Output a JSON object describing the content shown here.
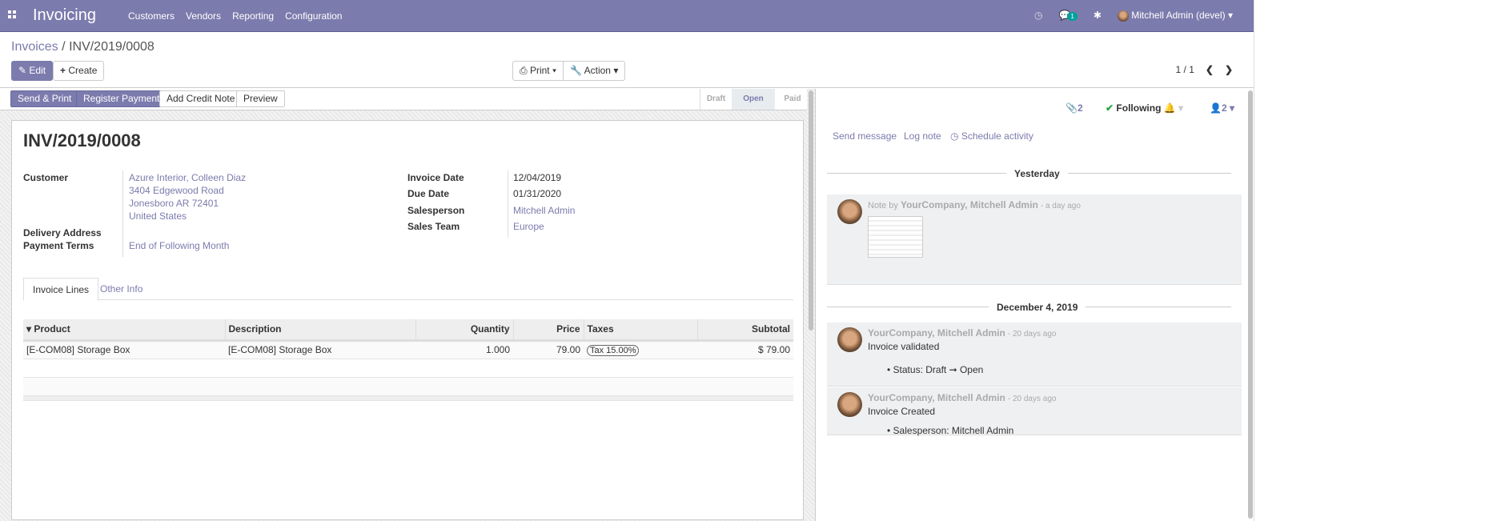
{
  "navbar": {
    "app": "Invoicing",
    "menu": [
      "Customers",
      "Vendors",
      "Reporting",
      "Configuration"
    ],
    "chat_badge": "1",
    "user": "Mitchell Admin (devel)",
    "color": "#7c7bad"
  },
  "control": {
    "breadcrumb_parent": "Invoices",
    "breadcrumb_sep": "/",
    "breadcrumb_current": "INV/2019/0008",
    "edit": "Edit",
    "create": "Create",
    "print": "Print",
    "action": "Action",
    "pager": "1 / 1"
  },
  "statusbar": {
    "buttons": [
      "Send & Print",
      "Register Payment",
      "Add Credit Note",
      "Preview"
    ],
    "stages": [
      "Draft",
      "Open",
      "Paid"
    ],
    "active_stage": "Open"
  },
  "form": {
    "title": "INV/2019/0008",
    "customer_label": "Customer",
    "customer": [
      "Azure Interior, Colleen Diaz",
      "3404 Edgewood Road",
      "Jonesboro AR 72401",
      "United States"
    ],
    "delivery_label": "Delivery Address",
    "terms_label": "Payment Terms",
    "terms": "End of Following Month",
    "invoice_date_label": "Invoice Date",
    "invoice_date": "12/04/2019",
    "due_date_label": "Due Date",
    "due_date": "01/31/2020",
    "salesperson_label": "Salesperson",
    "salesperson": "Mitchell Admin",
    "team_label": "Sales Team",
    "team": "Europe",
    "tabs": [
      "Invoice Lines",
      "Other Info"
    ],
    "columns": [
      "Product",
      "Description",
      "Quantity",
      "Price",
      "Taxes",
      "Subtotal"
    ],
    "lines": [
      {
        "product": "[E-COM08] Storage Box",
        "description": "[E-COM08] Storage Box",
        "quantity": "1.000",
        "price": "79.00",
        "tax": "Tax 15.00%",
        "subtotal": "$ 79.00"
      }
    ]
  },
  "chatter": {
    "attachments": "2",
    "following": "Following",
    "followers": "2",
    "send_message": "Send message",
    "log_note": "Log note",
    "schedule": "Schedule activity",
    "sep1": "Yesterday",
    "sep2": "December 4, 2019",
    "messages": [
      {
        "prefix": "Note by",
        "author": "YourCompany, Mitchell Admin",
        "time": "- a day ago"
      },
      {
        "author": "YourCompany, Mitchell Admin",
        "time": "- 20 days ago",
        "body": "Invoice validated",
        "change": "Status: Draft ➞ Open"
      },
      {
        "author": "YourCompany, Mitchell Admin",
        "time": "- 20 days ago",
        "body": "Invoice Created",
        "change": "Salesperson: Mitchell Admin"
      }
    ]
  }
}
